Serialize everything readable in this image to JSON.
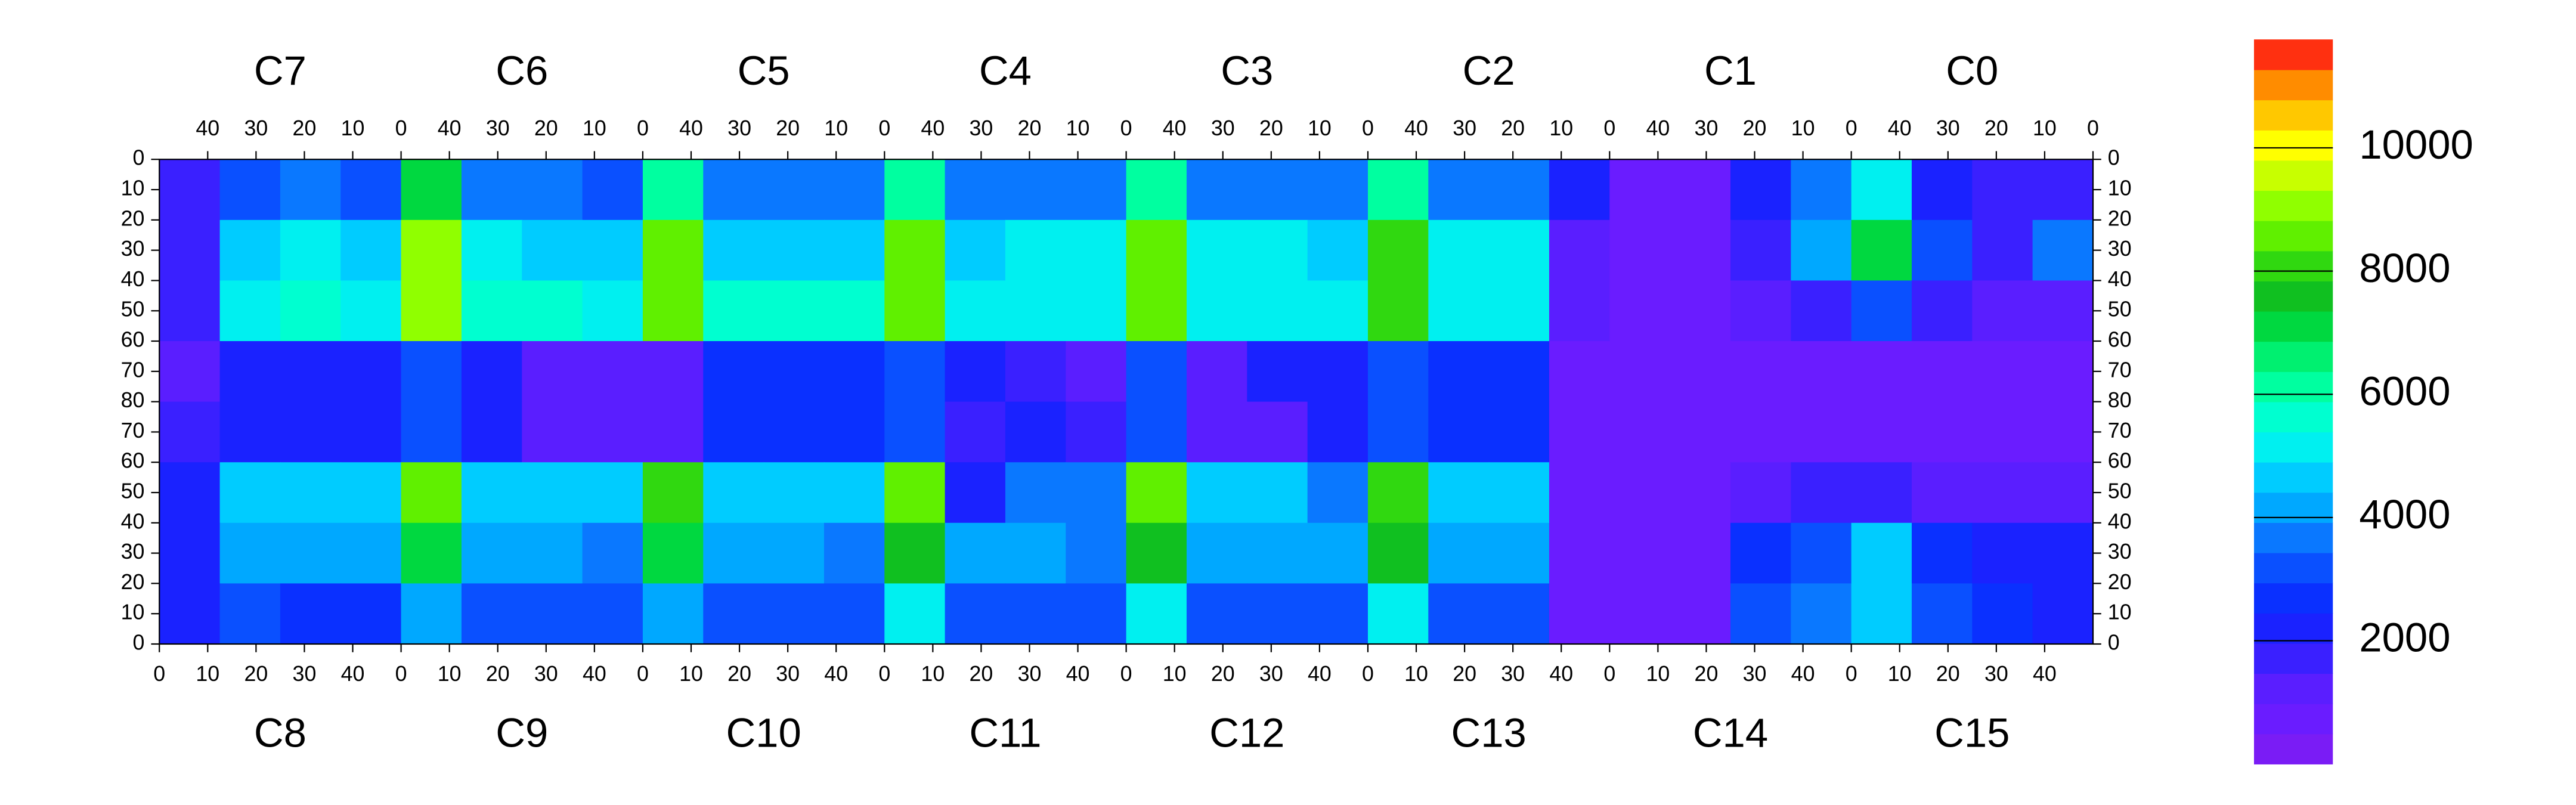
{
  "chart_data": {
    "type": "heatmap",
    "top_labels": [
      "C7",
      "C6",
      "C5",
      "C4",
      "C3",
      "C2",
      "C1",
      "C0"
    ],
    "bottom_labels": [
      "C8",
      "C9",
      "C10",
      "C11",
      "C12",
      "C13",
      "C14",
      "C15"
    ],
    "top_xticks": [
      40,
      30,
      20,
      10,
      0
    ],
    "bottom_xticks": [
      0,
      10,
      20,
      30,
      40
    ],
    "xlim": [
      0,
      50
    ],
    "ylim": [
      0,
      80
    ],
    "yticks": [
      0,
      10,
      20,
      30,
      40,
      50,
      60,
      70,
      80
    ],
    "zlim": [
      0,
      11760
    ],
    "zticks": [
      2000,
      4000,
      6000,
      8000,
      10000
    ],
    "colorscale": [
      "#7a1cf5",
      "#6a1cff",
      "#5a1eff",
      "#3a20ff",
      "#1a22ff",
      "#0a30ff",
      "#0a50ff",
      "#0a78ff",
      "#00a8ff",
      "#00ccff",
      "#00f0f0",
      "#00ffd0",
      "#00ffa0",
      "#00f070",
      "#00d840",
      "#10c020",
      "#30d810",
      "#60f000",
      "#90ff00",
      "#c8ff00",
      "#ffff00",
      "#ffc800",
      "#ff8c00",
      "#ff3010"
    ],
    "z": [
      [
        1500,
        3000,
        3500,
        3000,
        7000,
        3500,
        3500,
        3000,
        6000,
        3500,
        3500,
        3500,
        6000,
        3500,
        3500,
        3500,
        6000,
        3500,
        3500,
        3500,
        6000,
        3500,
        3500,
        2000,
        800,
        800,
        2000,
        3500,
        5000,
        2000,
        1500,
        1500
      ],
      [
        1500,
        4500,
        5000,
        4500,
        9000,
        5000,
        4500,
        4500,
        8500,
        4500,
        4500,
        4500,
        8500,
        4500,
        5000,
        5000,
        8500,
        5000,
        5000,
        4500,
        8000,
        5000,
        5000,
        1000,
        800,
        800,
        1500,
        4000,
        7000,
        3000,
        1500,
        3500
      ],
      [
        1500,
        5000,
        5500,
        5000,
        9000,
        5500,
        5500,
        5000,
        8500,
        5500,
        5500,
        5500,
        8500,
        5000,
        5000,
        5000,
        8500,
        5000,
        5000,
        5000,
        8000,
        5000,
        5000,
        1000,
        800,
        800,
        1000,
        1500,
        3000,
        1500,
        1000,
        1000
      ],
      [
        1200,
        2200,
        2200,
        2000,
        3000,
        2000,
        1000,
        1000,
        1000,
        2500,
        2500,
        2500,
        3000,
        2200,
        1500,
        1000,
        3000,
        1000,
        2200,
        2200,
        3000,
        2500,
        2500,
        800,
        800,
        800,
        800,
        800,
        800,
        800,
        800,
        800
      ],
      [
        1500,
        2000,
        2000,
        2000,
        3000,
        2000,
        1000,
        1000,
        1000,
        2500,
        2500,
        2500,
        3000,
        1500,
        2000,
        1500,
        3000,
        1000,
        1000,
        2200,
        3000,
        2500,
        2500,
        800,
        800,
        800,
        800,
        800,
        800,
        800,
        800,
        800
      ],
      [
        2000,
        4500,
        4500,
        4500,
        8500,
        4500,
        4500,
        4500,
        8000,
        4500,
        4500,
        4500,
        8500,
        2000,
        3500,
        3500,
        8500,
        4500,
        4500,
        3500,
        8000,
        4500,
        4500,
        800,
        800,
        800,
        1200,
        1500,
        1500,
        1200,
        1200,
        1000
      ],
      [
        2000,
        4000,
        4000,
        4000,
        7000,
        4000,
        4000,
        3500,
        7000,
        4000,
        4000,
        3500,
        7500,
        4000,
        4000,
        3500,
        7500,
        4000,
        4000,
        4000,
        7500,
        4000,
        4000,
        800,
        800,
        800,
        2500,
        3000,
        4500,
        2500,
        2000,
        2000
      ],
      [
        2000,
        3000,
        2500,
        2500,
        4000,
        3000,
        3000,
        3000,
        4000,
        3000,
        3000,
        3000,
        5000,
        3000,
        3000,
        3000,
        5000,
        3000,
        3000,
        3000,
        5000,
        3000,
        3000,
        800,
        800,
        800,
        3000,
        3500,
        4500,
        3000,
        2500,
        2000
      ]
    ]
  }
}
